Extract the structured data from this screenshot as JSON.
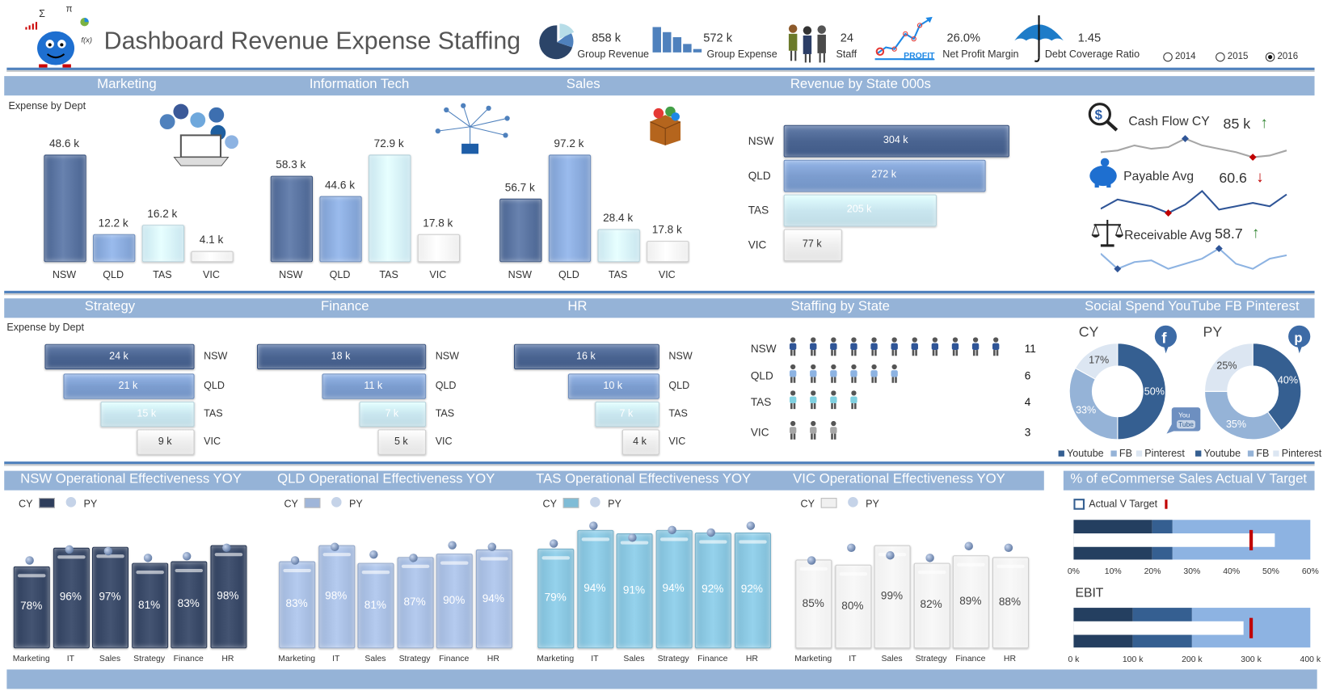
{
  "header": {
    "title": "Dashboard Revenue Expense Staffing",
    "kpis": [
      {
        "value": "858 k",
        "label": "Group Revenue",
        "icon": "pie-chart-icon"
      },
      {
        "value": "572 k",
        "label": "Group Expense",
        "icon": "bar-chart-icon"
      },
      {
        "value": "24",
        "label": "Staff",
        "icon": "staff-people-icon"
      },
      {
        "value": "26.0%",
        "label": "Net Profit Margin",
        "icon": "profit-chart-icon",
        "icon_text": "PROFIT"
      },
      {
        "value": "1.45",
        "label": "Debt Coverage Ratio",
        "icon": "umbrella-icon"
      }
    ],
    "years": [
      {
        "label": "2014",
        "selected": false
      },
      {
        "label": "2015",
        "selected": false
      },
      {
        "label": "2016",
        "selected": true
      }
    ]
  },
  "colors": {
    "band": "#95b3d7",
    "accent": "#4f81bd",
    "nsw": "#4a6491",
    "qld": "#7c9dcf",
    "tas": "#c9e6ef",
    "vic": "#eeeeee",
    "target": "#c00000"
  },
  "row1": {
    "expense_label": "Expense by Dept",
    "charts": [
      {
        "title": "Marketing",
        "type": "bar",
        "categories": [
          "NSW",
          "QLD",
          "TAS",
          "VIC"
        ],
        "values": [
          48.6,
          12.2,
          16.2,
          4.1
        ],
        "labels": [
          "48.6 k",
          "12.2 k",
          "16.2 k",
          "4.1 k"
        ]
      },
      {
        "title": "Information Tech",
        "type": "bar",
        "categories": [
          "NSW",
          "QLD",
          "TAS",
          "VIC"
        ],
        "values": [
          58.3,
          44.6,
          72.9,
          17.8
        ],
        "labels": [
          "58.3 k",
          "44.6 k",
          "72.9 k",
          "17.8 k"
        ]
      },
      {
        "title": "Sales",
        "type": "bar",
        "categories": [
          "NSW",
          "QLD",
          "TAS",
          "VIC"
        ],
        "values": [
          56.7,
          97.2,
          28.4,
          17.8
        ],
        "labels": [
          "56.7 k",
          "97.2 k",
          "28.4 k",
          "17.8 k"
        ]
      }
    ],
    "revenue_by_state": {
      "title": "Revenue by State 000s",
      "type": "bar",
      "categories": [
        "NSW",
        "QLD",
        "TAS",
        "VIC"
      ],
      "values": [
        304,
        272,
        205,
        77
      ],
      "labels": [
        "304 k",
        "272 k",
        "205 k",
        "77 k"
      ]
    },
    "metrics": [
      {
        "label": "Cash Flow CY",
        "value": "85 k",
        "trend": "up",
        "icon": "cash-search-icon"
      },
      {
        "label": "Payable Avg",
        "value": "60.6",
        "trend": "down",
        "icon": "piggy-bank-icon"
      },
      {
        "label": "Receivable Avg",
        "value": "58.7",
        "trend": "up",
        "icon": "scales-icon"
      }
    ]
  },
  "row2": {
    "expense_label": "Expense by Dept",
    "charts": [
      {
        "title": "Strategy",
        "type": "bar",
        "categories": [
          "NSW",
          "QLD",
          "TAS",
          "VIC"
        ],
        "values": [
          24,
          21,
          15,
          9
        ],
        "labels": [
          "24 k",
          "21 k",
          "15 k",
          "9 k"
        ]
      },
      {
        "title": "Finance",
        "type": "bar",
        "categories": [
          "NSW",
          "QLD",
          "TAS",
          "VIC"
        ],
        "values": [
          18,
          11,
          7,
          5
        ],
        "labels": [
          "18 k",
          "11 k",
          "7 k",
          "5 k"
        ]
      },
      {
        "title": "HR",
        "type": "bar",
        "categories": [
          "NSW",
          "QLD",
          "TAS",
          "VIC"
        ],
        "values": [
          16,
          10,
          7,
          4
        ],
        "labels": [
          "16 k",
          "10 k",
          "7 k",
          "4 k"
        ]
      }
    ],
    "staffing": {
      "title": "Staffing by State",
      "categories": [
        "NSW",
        "QLD",
        "TAS",
        "VIC"
      ],
      "values": [
        11,
        6,
        4,
        3
      ],
      "labels": [
        "11",
        "6",
        "4",
        "3"
      ]
    },
    "social": {
      "title": "Social Spend YouTube FB Pinterest",
      "charts": [
        {
          "label": "CY",
          "type": "pie",
          "categories": [
            "Youtube",
            "FB",
            "Pinterest"
          ],
          "values": [
            50,
            33,
            17
          ],
          "labels": [
            "50%",
            "33%",
            "17%"
          ]
        },
        {
          "label": "PY",
          "type": "pie",
          "categories": [
            "Youtube",
            "FB",
            "Pinterest"
          ],
          "values": [
            40,
            35,
            25
          ],
          "labels": [
            "40%",
            "35%",
            "25%"
          ]
        }
      ],
      "slice_colors": [
        "#355f91",
        "#95b3d7",
        "#dce6f2"
      ]
    }
  },
  "row3": {
    "legend": {
      "cy": "CY",
      "py": "PY"
    },
    "charts": [
      {
        "title": "NSW Operational Effectiveness YOY",
        "type": "bar",
        "color": "#2e3e5c",
        "categories": [
          "Marketing",
          "IT",
          "Sales",
          "Strategy",
          "Finance",
          "HR"
        ],
        "cy": [
          78,
          96,
          97,
          81,
          83,
          98
        ],
        "py": [
          84,
          94,
          93,
          86,
          88,
          96
        ],
        "labels": [
          "78%",
          "96%",
          "97%",
          "81%",
          "83%",
          "98%"
        ]
      },
      {
        "title": "QLD Operational Effectiveness YOY",
        "type": "bar",
        "color": "#9fb5d9",
        "categories": [
          "Marketing",
          "IT",
          "Sales",
          "Strategy",
          "Finance",
          "HR"
        ],
        "cy": [
          83,
          98,
          81,
          87,
          90,
          94
        ],
        "py": [
          84,
          97,
          89,
          86,
          98,
          97
        ],
        "labels": [
          "83%",
          "98%",
          "81%",
          "87%",
          "90%",
          "94%"
        ]
      },
      {
        "title": "TAS Operational Effectiveness YOY",
        "type": "bar",
        "color": "#7fbcd6",
        "categories": [
          "Marketing",
          "IT",
          "Sales",
          "Strategy",
          "Finance",
          "HR"
        ],
        "cy": [
          79,
          94,
          91,
          94,
          92,
          92
        ],
        "py": [
          83,
          97,
          88,
          94,
          92,
          97
        ],
        "labels": [
          "79%",
          "94%",
          "91%",
          "94%",
          "92%",
          "92%"
        ]
      },
      {
        "title": "VIC Operational Effectiveness YOY",
        "type": "bar",
        "color": "#f0f0f0",
        "categories": [
          "Marketing",
          "IT",
          "Sales",
          "Strategy",
          "Finance",
          "HR"
        ],
        "cy": [
          85,
          80,
          99,
          82,
          89,
          88
        ],
        "py": [
          84,
          97,
          89,
          87,
          98,
          97
        ],
        "labels": [
          "85%",
          "80%",
          "99%",
          "82%",
          "89%",
          "88%"
        ]
      }
    ],
    "ecommerce": {
      "title": "% of eCommerse Sales Actual V Target",
      "legend": "Actual V Target",
      "bullets": [
        {
          "label": "",
          "ticks": [
            "0%",
            "10%",
            "20%",
            "30%",
            "40%",
            "50%",
            "60%"
          ],
          "xlim": [
            0,
            60
          ],
          "bands": [
            20,
            25,
            60
          ],
          "actual": 51,
          "target": 45
        },
        {
          "label": "EBIT",
          "ticks": [
            "0 k",
            "100 k",
            "200 k",
            "300 k",
            "400 k"
          ],
          "xlim": [
            0,
            400
          ],
          "bands": [
            100,
            200,
            400
          ],
          "actual": 287,
          "target": 300
        }
      ],
      "band_colors": [
        "#243f60",
        "#355f91",
        "#8db3e2"
      ]
    }
  }
}
